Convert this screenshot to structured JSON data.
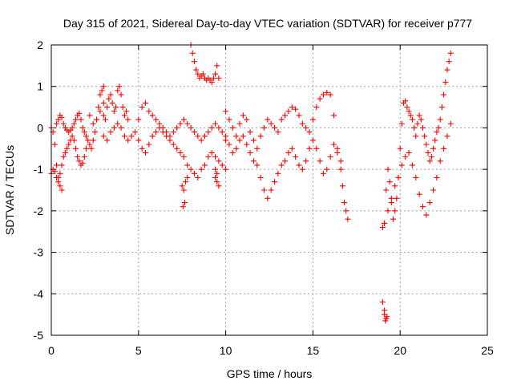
{
  "chart_data": {
    "type": "scatter",
    "title": "Day 315 of 2021, Sidereal Day-to-day VTEC variation (SDTVAR) for receiver p777",
    "xlabel": "GPS time / hours",
    "ylabel": "SDTVAR / TECUs",
    "xlim": [
      0,
      25
    ],
    "ylim": [
      -5,
      2
    ],
    "xticks": [
      0,
      5,
      10,
      15,
      20,
      25
    ],
    "yticks": [
      -5,
      -4,
      -3,
      -2,
      -1,
      0,
      1,
      2
    ],
    "xtick_labels": [
      "0",
      "5",
      "10",
      "15",
      "20",
      "25"
    ],
    "ytick_labels": [
      "-5",
      "-4",
      "-3",
      "-2",
      "-1",
      "0",
      "1",
      "2"
    ],
    "grid": true,
    "marker": "+",
    "color": "#ff0000",
    "series": [
      {
        "name": "SDTVAR",
        "x": [
          0.0,
          0.1,
          0.2,
          0.3,
          0.4,
          0.5,
          0.6,
          0.0,
          0.1,
          0.2,
          0.3,
          0.4,
          0.5,
          0.6,
          0.7,
          0.8,
          0.9,
          1.0,
          1.1,
          1.2,
          1.3,
          1.4,
          1.5,
          1.6,
          1.7,
          1.8,
          1.9,
          2.0,
          0.3,
          0.4,
          0.5,
          0.6,
          0.7,
          0.8,
          0.9,
          1.0,
          1.1,
          1.2,
          1.3,
          1.4,
          1.5,
          1.6,
          1.7,
          1.8,
          1.9,
          2.0,
          2.1,
          2.2,
          2.3,
          2.4,
          2.5,
          2.6,
          2.7,
          2.8,
          2.9,
          3.0,
          2.2,
          2.4,
          2.6,
          2.8,
          3.0,
          3.0,
          3.1,
          3.2,
          3.3,
          3.4,
          3.5,
          3.6,
          3.7,
          3.8,
          3.9,
          4.0,
          4.1,
          4.2,
          4.3,
          4.4,
          3.0,
          3.2,
          3.4,
          3.6,
          3.8,
          4.0,
          4.2,
          4.4,
          4.6,
          4.8,
          5.0,
          5.2,
          5.4,
          5.6,
          5.8,
          6.0,
          6.2,
          6.4,
          6.6,
          6.8,
          7.0,
          7.2,
          7.4,
          7.6,
          7.8,
          8.0,
          8.2,
          8.4,
          8.6,
          8.8,
          9.0,
          9.2,
          9.4,
          9.6,
          9.8,
          10.0,
          5.0,
          5.2,
          5.4,
          5.6,
          5.8,
          6.0,
          6.2,
          6.4,
          6.6,
          6.8,
          7.0,
          7.2,
          7.4,
          7.6,
          7.8,
          8.0,
          8.2,
          8.4,
          8.6,
          8.8,
          9.0,
          9.2,
          9.4,
          9.6,
          9.8,
          10.0,
          7.5,
          7.6,
          7.7,
          7.8,
          7.55,
          7.65,
          8.0,
          8.1,
          8.2,
          8.3,
          8.4,
          8.5,
          8.6,
          8.7,
          8.8,
          8.9,
          9.0,
          9.1,
          9.2,
          9.3,
          9.4,
          9.5,
          9.6,
          9.4,
          9.5,
          9.6,
          9.4,
          9.5,
          10.0,
          10.2,
          10.4,
          10.6,
          10.8,
          11.0,
          11.2,
          11.4,
          11.6,
          11.8,
          12.0,
          12.2,
          12.4,
          12.6,
          12.8,
          13.0,
          13.2,
          13.4,
          13.6,
          13.8,
          14.0,
          14.2,
          14.4,
          14.6,
          14.8,
          15.0,
          15.2,
          15.4,
          15.6,
          15.8,
          16.0,
          16.2,
          16.4,
          16.6,
          10.0,
          10.2,
          10.4,
          10.6,
          10.8,
          11.0,
          11.2,
          11.4,
          11.6,
          11.8,
          12.0,
          12.2,
          12.4,
          12.6,
          12.8,
          13.0,
          13.2,
          13.4,
          13.6,
          13.8,
          14.0,
          14.2,
          14.4,
          14.6,
          14.8,
          15.0,
          15.2,
          15.4,
          15.6,
          15.8,
          16.0,
          16.2,
          16.4,
          16.6,
          16.7,
          16.8,
          16.9,
          17.0,
          19.0,
          19.1,
          19.2,
          19.3,
          19.4,
          19.5,
          19.6,
          19.7,
          19.8,
          19.9,
          20.0,
          20.1,
          20.2,
          20.3,
          20.4,
          20.5,
          20.6,
          20.7,
          20.8,
          20.9,
          21.0,
          21.1,
          21.2,
          21.3,
          21.4,
          21.5,
          21.6,
          21.7,
          21.8,
          21.9,
          22.0,
          22.1,
          22.2,
          22.3,
          22.4,
          22.5,
          22.6,
          22.7,
          22.8,
          22.9,
          19.1,
          19.3,
          19.5,
          19.7,
          19.9,
          20.1,
          20.3,
          20.5,
          20.7,
          20.9,
          21.1,
          21.3,
          21.5,
          21.7,
          21.9,
          22.1,
          22.3,
          22.5,
          22.7,
          22.9,
          19.0,
          19.1,
          19.2,
          19.1,
          19.15,
          19.25
        ],
        "y": [
          0.0,
          -0.1,
          -0.4,
          -0.9,
          -1.2,
          -1.4,
          -1.5,
          -1.1,
          -1.0,
          -1.05,
          -1.2,
          -1.3,
          -1.1,
          -0.9,
          -0.7,
          -0.6,
          -0.5,
          -0.4,
          -0.3,
          -0.2,
          -0.3,
          -0.5,
          -0.7,
          -0.8,
          -0.9,
          -0.85,
          -0.7,
          -0.5,
          0.1,
          0.2,
          0.3,
          0.25,
          0.1,
          0.0,
          -0.05,
          -0.1,
          -0.05,
          0.0,
          0.1,
          0.2,
          0.3,
          0.35,
          0.2,
          0.0,
          -0.1,
          -0.2,
          -0.3,
          -0.4,
          -0.5,
          -0.3,
          -0.1,
          0.2,
          0.5,
          0.8,
          0.9,
          1.0,
          0.3,
          0.1,
          0.2,
          0.4,
          0.6,
          0.3,
          0.2,
          0.5,
          0.7,
          0.8,
          0.6,
          0.4,
          0.5,
          0.9,
          1.0,
          0.8,
          0.5,
          0.3,
          0.4,
          0.2,
          -0.2,
          -0.3,
          -0.1,
          0.0,
          0.1,
          0.0,
          -0.2,
          -0.3,
          -0.2,
          -0.1,
          0.2,
          0.5,
          0.6,
          0.4,
          0.3,
          0.2,
          0.1,
          0.0,
          -0.1,
          -0.2,
          -0.1,
          0.0,
          0.1,
          0.2,
          0.1,
          0.0,
          -0.1,
          -0.2,
          -0.3,
          -0.2,
          -0.1,
          0.0,
          0.1,
          0.0,
          -0.1,
          -0.3,
          -0.3,
          -0.5,
          -0.6,
          -0.4,
          -0.2,
          -0.1,
          0.0,
          -0.1,
          -0.2,
          -0.3,
          -0.4,
          -0.5,
          -0.6,
          -0.7,
          -0.9,
          -1.0,
          -1.1,
          -1.2,
          -1.0,
          -0.9,
          -0.7,
          -0.6,
          -0.7,
          -0.8,
          -0.9,
          -1.0,
          -1.4,
          -1.5,
          -1.3,
          -1.2,
          -1.9,
          -1.8,
          2.0,
          1.8,
          1.6,
          1.4,
          1.3,
          1.2,
          1.25,
          1.3,
          1.2,
          1.15,
          1.2,
          1.15,
          1.1,
          1.2,
          1.3,
          1.5,
          1.2,
          -1.2,
          -1.3,
          -1.4,
          -1.0,
          -1.1,
          0.4,
          0.2,
          0.0,
          -0.2,
          0.1,
          0.3,
          0.2,
          -0.1,
          -0.3,
          -0.5,
          -0.2,
          0.0,
          0.2,
          0.1,
          0.0,
          -0.1,
          0.2,
          0.3,
          0.4,
          0.5,
          0.45,
          0.3,
          0.1,
          0.0,
          -0.1,
          0.2,
          0.5,
          0.7,
          0.8,
          0.85,
          0.8,
          0.3,
          -0.5,
          -0.8,
          -0.2,
          -0.4,
          -0.6,
          -0.5,
          -0.3,
          -0.2,
          -0.4,
          -0.6,
          -0.8,
          -0.9,
          -1.2,
          -1.5,
          -1.7,
          -1.5,
          -1.3,
          -1.1,
          -0.9,
          -0.8,
          -0.6,
          -0.5,
          -0.7,
          -0.9,
          -1.0,
          -0.8,
          -0.5,
          -0.3,
          -0.5,
          -0.8,
          -1.1,
          -1.0,
          -0.7,
          -0.4,
          -0.6,
          -1.0,
          -1.4,
          -1.8,
          -2.0,
          -2.2,
          -2.4,
          -2.3,
          -1.5,
          -1.0,
          -1.3,
          -1.8,
          -2.2,
          -2.0,
          -1.7,
          -1.2,
          -0.5,
          0.1,
          0.6,
          0.65,
          0.5,
          0.4,
          0.3,
          0.2,
          0.0,
          -0.2,
          0.1,
          0.3,
          0.2,
          0.0,
          -0.2,
          -0.4,
          -0.6,
          -0.8,
          -0.7,
          -0.5,
          -0.3,
          -0.1,
          0.0,
          0.2,
          0.5,
          0.8,
          1.1,
          1.4,
          1.6,
          1.8,
          -2.3,
          -2.0,
          -1.7,
          -1.4,
          -1.2,
          -0.9,
          -0.7,
          -0.6,
          -0.9,
          -1.2,
          -1.6,
          -1.9,
          -2.1,
          -1.8,
          -1.5,
          -1.2,
          -0.8,
          -0.5,
          -0.2,
          0.1,
          -4.2,
          -4.4,
          -4.6,
          -4.5,
          -4.65,
          -4.55
        ]
      }
    ]
  }
}
